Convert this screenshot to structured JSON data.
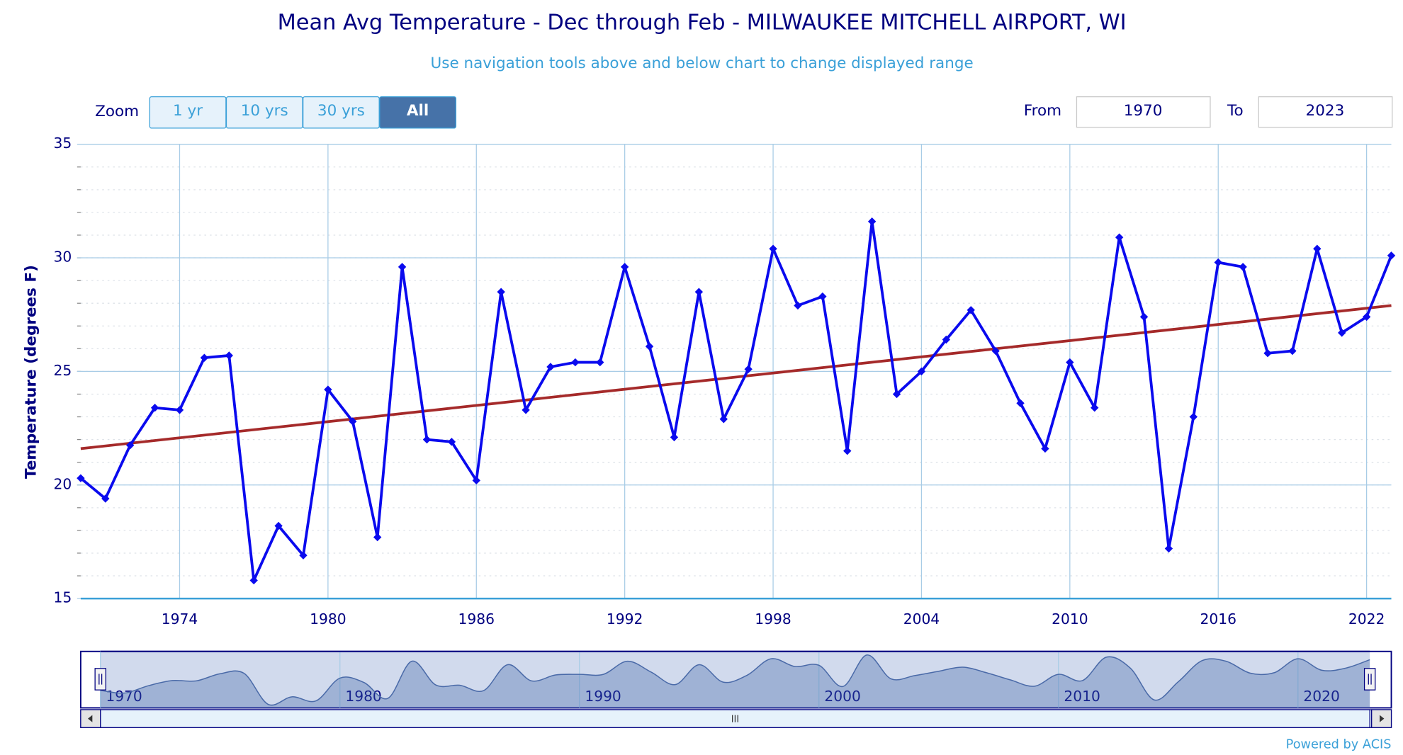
{
  "chart_data": {
    "type": "line",
    "title": "Mean Avg Temperature - Dec through Feb - MILWAUKEE MITCHELL AIRPORT, WI",
    "subtitle": "Use navigation tools above and below chart to change displayed range",
    "y_label": "Temperature (degrees F)",
    "x": [
      1970,
      1971,
      1972,
      1973,
      1974,
      1975,
      1976,
      1977,
      1978,
      1979,
      1980,
      1981,
      1982,
      1983,
      1984,
      1985,
      1986,
      1987,
      1988,
      1989,
      1990,
      1991,
      1992,
      1993,
      1994,
      1995,
      1996,
      1997,
      1998,
      1999,
      2000,
      2001,
      2002,
      2003,
      2004,
      2005,
      2006,
      2007,
      2008,
      2009,
      2010,
      2011,
      2012,
      2013,
      2014,
      2015,
      2016,
      2017,
      2018,
      2019,
      2020,
      2021,
      2022,
      2023
    ],
    "series": [
      {
        "color": "#0a0aee",
        "values": [
          20.3,
          19.4,
          21.75,
          23.4,
          23.3,
          25.6,
          25.7,
          15.8,
          18.2,
          16.9,
          24.2,
          22.8,
          17.7,
          29.6,
          22.0,
          21.9,
          20.2,
          28.5,
          23.3,
          25.2,
          25.4,
          25.4,
          29.6,
          26.1,
          22.1,
          28.5,
          22.9,
          25.1,
          30.4,
          27.9,
          28.3,
          21.5,
          31.6,
          24.0,
          25.0,
          26.4,
          27.7,
          25.9,
          23.6,
          21.6,
          25.4,
          23.4,
          30.9,
          27.4,
          17.2,
          23.0,
          29.8,
          29.6,
          25.8,
          25.9,
          30.4,
          26.7,
          27.4,
          30.1
        ]
      }
    ],
    "trend": {
      "color": "#a52a2a",
      "x": [
        1970,
        2023
      ],
      "values": [
        21.6,
        27.9
      ]
    },
    "xlim": [
      1970,
      2023
    ],
    "xticks": [
      1974,
      1980,
      1986,
      1992,
      1998,
      2004,
      2010,
      2016,
      2022
    ],
    "ylim": [
      15,
      35
    ],
    "yticks": [
      15,
      20,
      25,
      30,
      35
    ],
    "minor_ytick_step": 1,
    "grid": true,
    "navigator_xticks": [
      1970,
      1980,
      1990,
      2000,
      2010,
      2020
    ],
    "range_selector": {
      "zoom_label": "Zoom",
      "buttons": [
        "1 yr",
        "10 yrs",
        "30 yrs",
        "All"
      ],
      "selected": 3,
      "from_label": "From",
      "from": "1970",
      "to_label": "To",
      "to": "2023"
    },
    "credit": "Powered by ACIS"
  }
}
